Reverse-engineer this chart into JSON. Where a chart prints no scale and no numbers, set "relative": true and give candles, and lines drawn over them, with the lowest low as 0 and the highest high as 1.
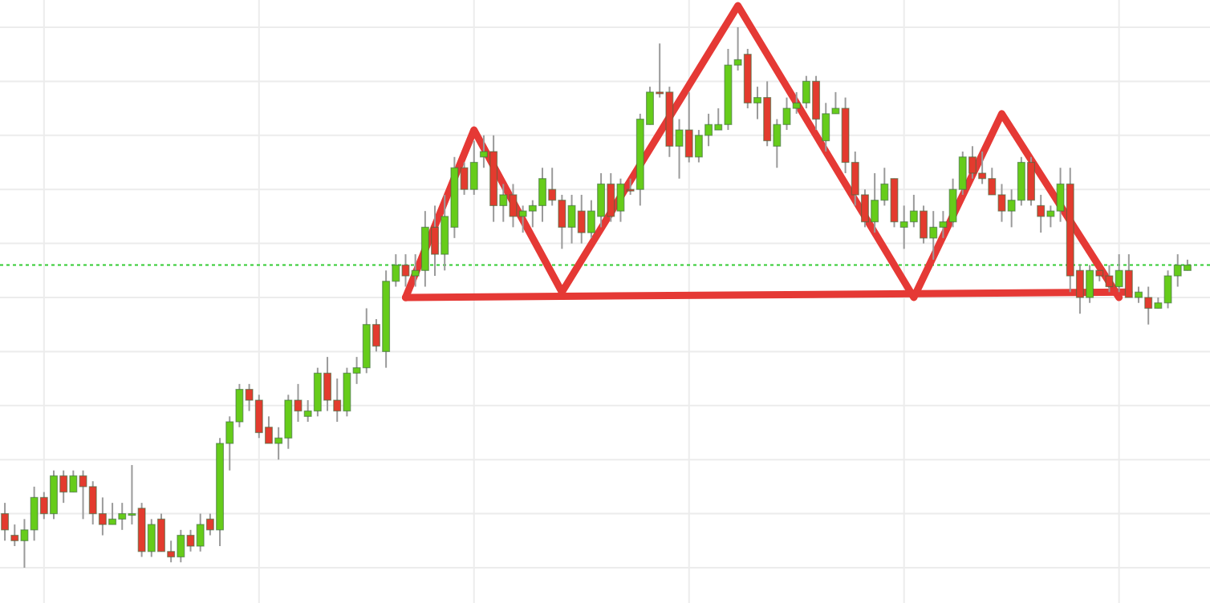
{
  "chart_data": {
    "type": "candlestick",
    "relative": true,
    "grid": true,
    "colors": [
      "#e33b2e",
      "#e33b2e",
      "#66cc1a",
      "#66cc1a",
      "#e33b2e",
      "#66cc1a",
      "#e33b2e",
      "#66cc1a",
      "#e33b2e",
      "#e33b2e",
      "#e33b2e",
      "#66cc1a",
      "#66cc1a",
      "#66cc1a",
      "#e33b2e",
      "#66cc1a",
      "#e33b2e",
      "#e33b2e",
      "#66cc1a",
      "#e33b2e",
      "#66cc1a",
      "#e33b2e",
      "#66cc1a",
      "#66cc1a",
      "#66cc1a",
      "#e33b2e",
      "#e33b2e",
      "#e33b2e",
      "#66cc1a",
      "#66cc1a",
      "#e33b2e",
      "#66cc1a",
      "#66cc1a",
      "#e33b2e",
      "#e33b2e",
      "#66cc1a",
      "#66cc1a",
      "#66cc1a",
      "#e33b2e",
      "#66cc1a",
      "#66cc1a",
      "#e33b2e",
      "#66cc1a",
      "#66cc1a",
      "#e33b2e",
      "#66cc1a",
      "#66cc1a",
      "#e33b2e",
      "#66cc1a",
      "#66cc1a",
      "#e33b2e",
      "#66cc1a",
      "#e33b2e",
      "#66cc1a",
      "#66cc1a",
      "#66cc1a",
      "#e33b2e",
      "#e33b2e",
      "#66cc1a",
      "#e33b2e",
      "#66cc1a",
      "#66cc1a",
      "#e33b2e",
      "#66cc1a",
      "#e33b2e",
      "#66cc1a",
      "#66cc1a",
      "#e33b2e",
      "#e33b2e",
      "#66cc1a",
      "#e33b2e",
      "#66cc1a",
      "#66cc1a",
      "#66cc1a",
      "#66cc1a",
      "#66cc1a",
      "#e33b2e",
      "#66cc1a",
      "#e33b2e",
      "#66cc1a",
      "#66cc1a",
      "#66cc1a",
      "#66cc1a",
      "#e33b2e",
      "#66cc1a",
      "#66cc1a",
      "#e33b2e",
      "#e33b2e",
      "#e33b2e",
      "#66cc1a",
      "#66cc1a",
      "#e33b2e",
      "#66cc1a",
      "#66cc1a",
      "#e33b2e",
      "#66cc1a",
      "#66cc1a",
      "#66cc1a",
      "#66cc1a",
      "#e33b2e",
      "#e33b2e",
      "#e33b2e",
      "#e33b2e",
      "#66cc1a",
      "#66cc1a",
      "#e33b2e",
      "#e33b2e",
      "#66cc1a",
      "#66cc1a",
      "#e33b2e",
      "#e33b2e",
      "#66cc1a",
      "#e33b2e",
      "#e33b2e",
      "#66cc1a",
      "#e33b2e",
      "#66cc1a",
      "#e33b2e",
      "#66cc1a",
      "#66cc1a",
      "#66cc1a",
      "#66cc1a"
    ],
    "categories": [
      null,
      null,
      null,
      null,
      null,
      null,
      null,
      null,
      null,
      null,
      null,
      null,
      null,
      null,
      null,
      null,
      null,
      null,
      null,
      null,
      null,
      null,
      null,
      null,
      null,
      null,
      null,
      null,
      null,
      null,
      null,
      null,
      null,
      null,
      null,
      null,
      null,
      null,
      null,
      null,
      null,
      null,
      null,
      null,
      null,
      null,
      null,
      null,
      null,
      null,
      null,
      null,
      null,
      null,
      null,
      null,
      null,
      null,
      null,
      null,
      null,
      null,
      null,
      null,
      null,
      null,
      null,
      null,
      null,
      null,
      null,
      null,
      null,
      null,
      null,
      null,
      null,
      null,
      null,
      null,
      null,
      null,
      null,
      null,
      null,
      null,
      null,
      null,
      null,
      null,
      null,
      null,
      null,
      null,
      null,
      null,
      null,
      null,
      null,
      null,
      null,
      null,
      null,
      null,
      null,
      null,
      null,
      null,
      null,
      null,
      null,
      null,
      null,
      null,
      null,
      null,
      null,
      null,
      null,
      null,
      null,
      null
    ],
    "ohlc": [
      [
        0.1,
        0.12,
        0.05,
        0.07
      ],
      [
        0.06,
        0.08,
        0.04,
        0.05
      ],
      [
        0.05,
        0.09,
        0,
        0.07
      ],
      [
        0.07,
        0.15,
        0.05,
        0.13
      ],
      [
        0.13,
        0.14,
        0.09,
        0.1
      ],
      [
        0.1,
        0.18,
        0.09,
        0.17
      ],
      [
        0.17,
        0.18,
        0.12,
        0.14
      ],
      [
        0.14,
        0.18,
        0.14,
        0.17
      ],
      [
        0.17,
        0.18,
        0.09,
        0.15
      ],
      [
        0.15,
        0.16,
        0.08,
        0.1
      ],
      [
        0.1,
        0.13,
        0.06,
        0.08
      ],
      [
        0.08,
        0.12,
        0.08,
        0.09
      ],
      [
        0.09,
        0.12,
        0.07,
        0.1
      ],
      [
        0.1,
        0.19,
        0.08,
        0.1
      ],
      [
        0.11,
        0.12,
        0.02,
        0.03
      ],
      [
        0.03,
        0.09,
        0.02,
        0.08
      ],
      [
        0.09,
        0.1,
        0.03,
        0.03
      ],
      [
        0.03,
        0.05,
        0.01,
        0.02
      ],
      [
        0.02,
        0.07,
        0.01,
        0.06
      ],
      [
        0.06,
        0.07,
        0.03,
        0.04
      ],
      [
        0.04,
        0.1,
        0.03,
        0.08
      ],
      [
        0.09,
        0.1,
        0.06,
        0.07
      ],
      [
        0.07,
        0.24,
        0.04,
        0.23
      ],
      [
        0.23,
        0.28,
        0.18,
        0.27
      ],
      [
        0.27,
        0.34,
        0.26,
        0.33
      ],
      [
        0.33,
        0.34,
        0.29,
        0.31
      ],
      [
        0.31,
        0.32,
        0.24,
        0.25
      ],
      [
        0.26,
        0.28,
        0.23,
        0.23
      ],
      [
        0.23,
        0.26,
        0.2,
        0.24
      ],
      [
        0.24,
        0.32,
        0.22,
        0.31
      ],
      [
        0.31,
        0.34,
        0.27,
        0.29
      ],
      [
        0.28,
        0.31,
        0.27,
        0.29
      ],
      [
        0.29,
        0.37,
        0.28,
        0.36
      ],
      [
        0.36,
        0.39,
        0.29,
        0.31
      ],
      [
        0.31,
        0.35,
        0.27,
        0.29
      ],
      [
        0.29,
        0.37,
        0.28,
        0.36
      ],
      [
        0.36,
        0.39,
        0.34,
        0.37
      ],
      [
        0.37,
        0.48,
        0.36,
        0.45
      ],
      [
        0.45,
        0.46,
        0.4,
        0.41
      ],
      [
        0.4,
        0.55,
        0.37,
        0.53
      ],
      [
        0.53,
        0.58,
        0.52,
        0.56
      ],
      [
        0.56,
        0.58,
        0.52,
        0.54
      ],
      [
        0.54,
        0.58,
        0.52,
        0.55
      ],
      [
        0.55,
        0.66,
        0.52,
        0.63
      ],
      [
        0.63,
        0.67,
        0.54,
        0.58
      ],
      [
        0.58,
        0.69,
        0.55,
        0.65
      ],
      [
        0.63,
        0.76,
        0.61,
        0.74
      ],
      [
        0.74,
        0.75,
        0.69,
        0.7
      ],
      [
        0.7,
        0.79,
        0.69,
        0.75
      ],
      [
        0.76,
        0.8,
        0.74,
        0.77
      ],
      [
        0.77,
        0.8,
        0.64,
        0.67
      ],
      [
        0.67,
        0.71,
        0.64,
        0.69
      ],
      [
        0.69,
        0.71,
        0.63,
        0.65
      ],
      [
        0.65,
        0.67,
        0.62,
        0.66
      ],
      [
        0.66,
        0.68,
        0.63,
        0.67
      ],
      [
        0.67,
        0.74,
        0.64,
        0.72
      ],
      [
        0.7,
        0.74,
        0.67,
        0.68
      ],
      [
        0.68,
        0.69,
        0.59,
        0.63
      ],
      [
        0.63,
        0.69,
        0.6,
        0.67
      ],
      [
        0.66,
        0.69,
        0.6,
        0.62
      ],
      [
        0.62,
        0.68,
        0.61,
        0.66
      ],
      [
        0.65,
        0.73,
        0.63,
        0.71
      ],
      [
        0.71,
        0.73,
        0.64,
        0.65
      ],
      [
        0.66,
        0.72,
        0.64,
        0.71
      ],
      [
        0.7,
        0.72,
        0.69,
        0.7
      ],
      [
        0.7,
        0.84,
        0.67,
        0.83
      ],
      [
        0.82,
        0.89,
        0.82,
        0.88
      ],
      [
        0.88,
        0.97,
        0.87,
        0.88
      ],
      [
        0.88,
        0.89,
        0.76,
        0.78
      ],
      [
        0.78,
        0.83,
        0.72,
        0.81
      ],
      [
        0.81,
        0.88,
        0.75,
        0.76
      ],
      [
        0.76,
        0.81,
        0.75,
        0.8
      ],
      [
        0.8,
        0.84,
        0.78,
        0.82
      ],
      [
        0.81,
        0.85,
        0.81,
        0.82
      ],
      [
        0.82,
        0.96,
        0.81,
        0.93
      ],
      [
        0.93,
        1.0,
        0.92,
        0.94
      ],
      [
        0.95,
        0.96,
        0.85,
        0.86
      ],
      [
        0.86,
        0.89,
        0.83,
        0.87
      ],
      [
        0.87,
        0.9,
        0.78,
        0.79
      ],
      [
        0.78,
        0.83,
        0.74,
        0.82
      ],
      [
        0.82,
        0.87,
        0.81,
        0.85
      ],
      [
        0.85,
        0.88,
        0.84,
        0.86
      ],
      [
        0.86,
        0.91,
        0.85,
        0.9
      ],
      [
        0.9,
        0.91,
        0.81,
        0.83
      ],
      [
        0.79,
        0.86,
        0.77,
        0.84
      ],
      [
        0.84,
        0.88,
        0.84,
        0.85
      ],
      [
        0.85,
        0.87,
        0.73,
        0.75
      ],
      [
        0.75,
        0.77,
        0.67,
        0.69
      ],
      [
        0.69,
        0.7,
        0.63,
        0.64
      ],
      [
        0.64,
        0.73,
        0.62,
        0.68
      ],
      [
        0.68,
        0.74,
        0.67,
        0.71
      ],
      [
        0.72,
        0.72,
        0.63,
        0.64
      ],
      [
        0.63,
        0.67,
        0.59,
        0.64
      ],
      [
        0.64,
        0.69,
        0.63,
        0.66
      ],
      [
        0.66,
        0.67,
        0.6,
        0.61
      ],
      [
        0.61,
        0.66,
        0.57,
        0.63
      ],
      [
        0.63,
        0.66,
        0.61,
        0.64
      ],
      [
        0.64,
        0.72,
        0.63,
        0.7
      ],
      [
        0.7,
        0.77,
        0.69,
        0.76
      ],
      [
        0.76,
        0.78,
        0.72,
        0.73
      ],
      [
        0.73,
        0.77,
        0.71,
        0.72
      ],
      [
        0.72,
        0.74,
        0.69,
        0.69
      ],
      [
        0.69,
        0.71,
        0.64,
        0.66
      ],
      [
        0.66,
        0.7,
        0.63,
        0.68
      ],
      [
        0.68,
        0.76,
        0.67,
        0.75
      ],
      [
        0.75,
        0.76,
        0.67,
        0.68
      ],
      [
        0.67,
        0.69,
        0.62,
        0.65
      ],
      [
        0.65,
        0.67,
        0.63,
        0.66
      ],
      [
        0.66,
        0.74,
        0.64,
        0.71
      ],
      [
        0.71,
        0.74,
        0.51,
        0.54
      ],
      [
        0.55,
        0.56,
        0.47,
        0.5
      ],
      [
        0.5,
        0.56,
        0.49,
        0.55
      ],
      [
        0.55,
        0.55,
        0.53,
        0.54
      ],
      [
        0.54,
        0.56,
        0.51,
        0.52
      ],
      [
        0.52,
        0.58,
        0.51,
        0.55
      ],
      [
        0.55,
        0.58,
        0.5,
        0.5
      ],
      [
        0.5,
        0.52,
        0.49,
        0.51
      ],
      [
        0.5,
        0.52,
        0.45,
        0.48
      ],
      [
        0.48,
        0.5,
        0.48,
        0.49
      ],
      [
        0.49,
        0.55,
        0.48,
        0.54
      ],
      [
        0.54,
        0.58,
        0.52,
        0.56
      ],
      [
        0.55,
        0.57,
        0.55,
        0.56
      ]
    ],
    "series": [
      {
        "type": "line",
        "color": "#e53935",
        "values": [
          null,
          null,
          null,
          null,
          null,
          null,
          null,
          null,
          null,
          null,
          null,
          null,
          null,
          null,
          null,
          null,
          null,
          null,
          null,
          null,
          null,
          null,
          null,
          null,
          null,
          null,
          null,
          null,
          null,
          null,
          null,
          null,
          null,
          null,
          null,
          null,
          null,
          null,
          null,
          null,
          null,
          0.5,
          null,
          null,
          null,
          null,
          null,
          null,
          0.81,
          null,
          null,
          null,
          null,
          null,
          null,
          null,
          null,
          0.51,
          null,
          null,
          null,
          null,
          null,
          null,
          null,
          null,
          null,
          null,
          null,
          null,
          null,
          null,
          null,
          null,
          null,
          1.04,
          null,
          null,
          null,
          null,
          null,
          null,
          null,
          null,
          null,
          null,
          null,
          null,
          null,
          null,
          null,
          null,
          null,
          0.5,
          null,
          null,
          null,
          null,
          null,
          null,
          null,
          null,
          0.84,
          null,
          null,
          null,
          null,
          null,
          null,
          null,
          null,
          null,
          null,
          null,
          0.5,
          null,
          null,
          null,
          null,
          null,
          null,
          null
        ]
      },
      {
        "type": "line",
        "color": "#e53935",
        "values": [
          null,
          null,
          null,
          null,
          null,
          null,
          null,
          null,
          null,
          null,
          null,
          null,
          null,
          null,
          null,
          null,
          null,
          null,
          null,
          null,
          null,
          null,
          null,
          null,
          null,
          null,
          null,
          null,
          null,
          null,
          null,
          null,
          null,
          null,
          null,
          null,
          null,
          null,
          null,
          null,
          null,
          0.5,
          null,
          null,
          null,
          null,
          null,
          null,
          null,
          null,
          null,
          null,
          null,
          null,
          null,
          null,
          null,
          null,
          null,
          null,
          null,
          null,
          null,
          null,
          null,
          null,
          null,
          null,
          null,
          null,
          null,
          null,
          null,
          null,
          null,
          null,
          null,
          null,
          null,
          null,
          null,
          null,
          null,
          null,
          null,
          null,
          null,
          null,
          null,
          null,
          null,
          null,
          null,
          null,
          null,
          null,
          null,
          null,
          null,
          null,
          null,
          null,
          null,
          null,
          null,
          null,
          null,
          null,
          null,
          null,
          null,
          null,
          null,
          null,
          null,
          0.51,
          null,
          null,
          null,
          null,
          null,
          null
        ]
      }
    ],
    "ref_lines": [
      {
        "axis": "y",
        "value": 0.56,
        "color": "#33cc33",
        "line_style": "dotted"
      }
    ]
  }
}
